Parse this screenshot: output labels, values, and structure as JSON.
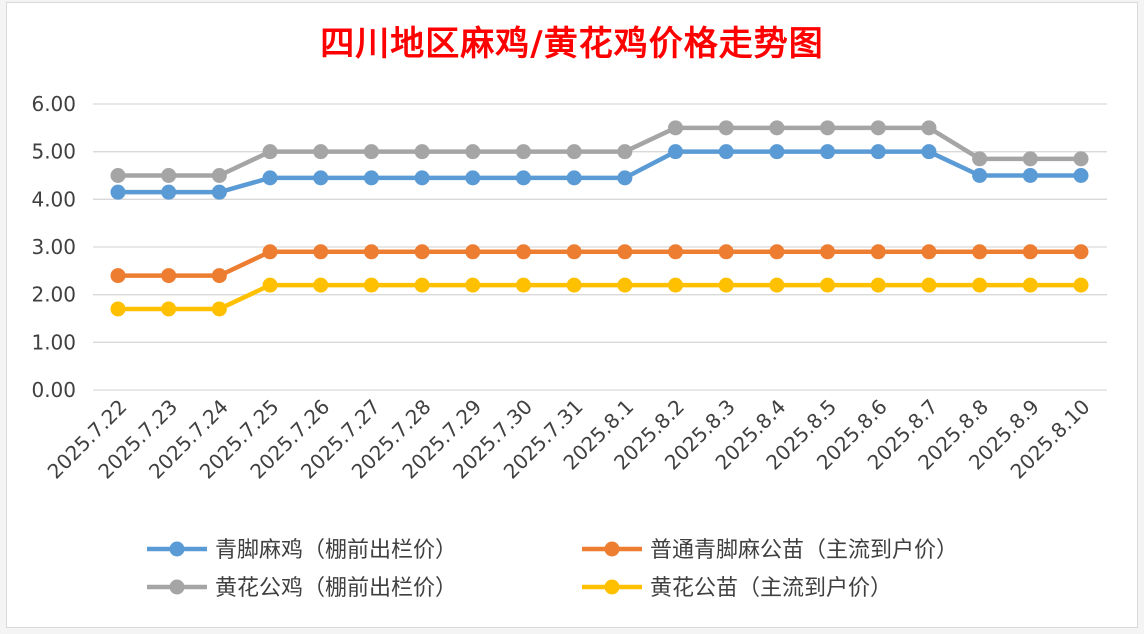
{
  "chart_data": {
    "type": "line",
    "title": "四川地区麻鸡/黄花鸡价格走势图",
    "xlabel": "",
    "ylabel": "",
    "ylim": [
      0,
      6
    ],
    "yticks": [
      "0.00",
      "1.00",
      "2.00",
      "3.00",
      "4.00",
      "5.00",
      "6.00"
    ],
    "categories": [
      "2025.7.22",
      "2025.7.23",
      "2025.7.24",
      "2025.7.25",
      "2025.7.26",
      "2025.7.27",
      "2025.7.28",
      "2025.7.29",
      "2025.7.30",
      "2025.7.31",
      "2025.8.1",
      "2025.8.2",
      "2025.8.3",
      "2025.8.4",
      "2025.8.5",
      "2025.8.6",
      "2025.8.7",
      "2025.8.8",
      "2025.8.9",
      "2025.8.10"
    ],
    "grid": true,
    "legend_position": "bottom",
    "series": [
      {
        "name": "青脚麻鸡（棚前出栏价）",
        "color": "#5b9bd5",
        "values": [
          4.15,
          4.15,
          4.15,
          4.45,
          4.45,
          4.45,
          4.45,
          4.45,
          4.45,
          4.45,
          4.45,
          5.0,
          5.0,
          5.0,
          5.0,
          5.0,
          5.0,
          4.5,
          4.5,
          4.5
        ]
      },
      {
        "name": "普通青脚麻公苗（主流到户价）",
        "color": "#ed7d31",
        "values": [
          2.4,
          2.4,
          2.4,
          2.9,
          2.9,
          2.9,
          2.9,
          2.9,
          2.9,
          2.9,
          2.9,
          2.9,
          2.9,
          2.9,
          2.9,
          2.9,
          2.9,
          2.9,
          2.9,
          2.9
        ]
      },
      {
        "name": "黄花公鸡（棚前出栏价）",
        "color": "#a5a5a5",
        "values": [
          4.5,
          4.5,
          4.5,
          5.0,
          5.0,
          5.0,
          5.0,
          5.0,
          5.0,
          5.0,
          5.0,
          5.5,
          5.5,
          5.5,
          5.5,
          5.5,
          5.5,
          4.85,
          4.85,
          4.85
        ]
      },
      {
        "name": "黄花公苗（主流到户价）",
        "color": "#ffc000",
        "values": [
          1.7,
          1.7,
          1.7,
          2.2,
          2.2,
          2.2,
          2.2,
          2.2,
          2.2,
          2.2,
          2.2,
          2.2,
          2.2,
          2.2,
          2.2,
          2.2,
          2.2,
          2.2,
          2.2,
          2.2
        ]
      }
    ]
  }
}
